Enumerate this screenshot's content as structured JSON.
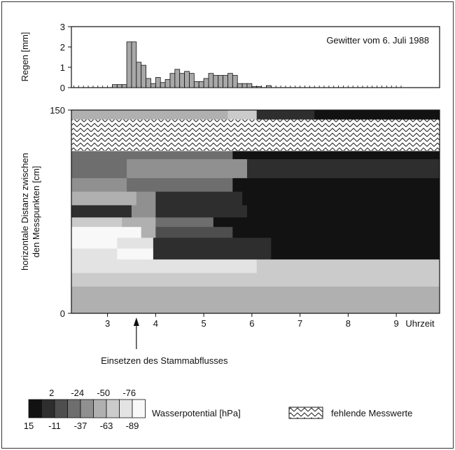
{
  "chart_data": [
    {
      "type": "bar",
      "title": "Gewitter vom 6. Juli 1988",
      "ylabel": "Regen [mm]",
      "ylim": [
        0,
        3
      ],
      "yticks": [
        "0",
        "1",
        "2",
        "3"
      ],
      "x_start": 2.2,
      "bar_width": 0.1,
      "values": [
        0,
        0,
        0,
        0,
        0,
        0,
        0,
        0,
        0,
        0.15,
        0.15,
        0.15,
        2.25,
        2.25,
        1.25,
        1.1,
        0.45,
        0.2,
        0.5,
        0.25,
        0.4,
        0.7,
        0.9,
        0.7,
        0.8,
        0.7,
        0.3,
        0.3,
        0.45,
        0.7,
        0.6,
        0.6,
        0.6,
        0.7,
        0.6,
        0.2,
        0.2,
        0.2,
        0.05,
        0.05,
        0,
        0.1,
        0,
        0,
        0,
        0,
        0,
        0,
        0,
        0,
        0,
        0,
        0,
        0,
        0,
        0,
        0,
        0,
        0,
        0,
        0,
        0,
        0,
        0,
        0,
        0,
        0,
        0,
        0,
        0
      ]
    },
    {
      "type": "heatmap",
      "ylabel": "horizontale Distanz zwischen den Messpunkten [cm]",
      "xlabel": "Uhrzeit",
      "xlim": [
        2.25,
        9.9
      ],
      "ylim": [
        0,
        150
      ],
      "xticks": [
        "3",
        "4",
        "5",
        "6",
        "7",
        "8",
        "9"
      ],
      "yticks": [
        "0",
        "150"
      ],
      "annotation": "Einsetzen des Stammabflusses",
      "annotation_x": 3.6,
      "legend_label": "Wasserpotential [hPa]",
      "legend_top_values": [
        "2",
        "-24",
        "-50",
        "-76"
      ],
      "legend_bottom_values": [
        "15",
        "-11",
        "-37",
        "-63",
        "-89"
      ],
      "class_colors": [
        "#121212",
        "#2e2e2e",
        "#4e4e4e",
        "#6e6e6e",
        "#909090",
        "#b0b0b0",
        "#cbcbcb",
        "#e3e3e3",
        "#f8f8f8"
      ],
      "missing_label": "fehlende Messwerte",
      "missing_band_cm": [
        120,
        143
      ],
      "bands": [
        {
          "y": [
            0,
            20
          ],
          "classes": [
            [
              2.25,
              9.9,
              5
            ]
          ]
        },
        {
          "y": [
            20,
            30
          ],
          "classes": [
            [
              2.25,
              9.9,
              6
            ]
          ]
        },
        {
          "y": [
            30,
            40
          ],
          "classes": [
            [
              2.25,
              6.1,
              7
            ],
            [
              6.1,
              9.9,
              6
            ]
          ]
        },
        {
          "y": [
            40,
            48
          ],
          "classes": [
            [
              2.25,
              3.2,
              7
            ],
            [
              3.2,
              3.95,
              8
            ],
            [
              3.95,
              6.4,
              1
            ],
            [
              6.4,
              9.9,
              0
            ]
          ]
        },
        {
          "y": [
            48,
            56
          ],
          "classes": [
            [
              2.25,
              3.2,
              8
            ],
            [
              3.2,
              3.95,
              7
            ],
            [
              3.95,
              6.4,
              1
            ],
            [
              6.4,
              9.9,
              0
            ]
          ]
        },
        {
          "y": [
            56,
            64
          ],
          "classes": [
            [
              2.25,
              3.7,
              8
            ],
            [
              3.7,
              4.0,
              5
            ],
            [
              4.0,
              5.6,
              2
            ],
            [
              5.6,
              9.9,
              0
            ]
          ]
        },
        {
          "y": [
            64,
            71
          ],
          "classes": [
            [
              2.25,
              3.3,
              6
            ],
            [
              3.3,
              4.0,
              5
            ],
            [
              4.0,
              5.2,
              3
            ],
            [
              5.2,
              9.9,
              0
            ]
          ]
        },
        {
          "y": [
            71,
            80
          ],
          "classes": [
            [
              2.25,
              3.5,
              1
            ],
            [
              3.5,
              4.0,
              4
            ],
            [
              4.0,
              5.9,
              1
            ],
            [
              5.9,
              9.9,
              0
            ]
          ]
        },
        {
          "y": [
            80,
            90
          ],
          "classes": [
            [
              2.25,
              3.6,
              5
            ],
            [
              3.6,
              4.0,
              4
            ],
            [
              4.0,
              5.8,
              1
            ],
            [
              5.8,
              9.9,
              0
            ]
          ]
        },
        {
          "y": [
            90,
            100
          ],
          "classes": [
            [
              2.25,
              3.4,
              4
            ],
            [
              3.4,
              5.6,
              3
            ],
            [
              5.6,
              9.9,
              0
            ]
          ]
        },
        {
          "y": [
            100,
            114
          ],
          "classes": [
            [
              2.25,
              3.4,
              3
            ],
            [
              3.4,
              5.9,
              4
            ],
            [
              5.9,
              9.9,
              1
            ]
          ]
        },
        {
          "y": [
            114,
            120
          ],
          "classes": [
            [
              2.25,
              5.6,
              3
            ],
            [
              5.6,
              9.9,
              0
            ]
          ]
        },
        {
          "y": [
            120,
            143
          ],
          "classes": [
            [
              2.25,
              9.9,
              8
            ]
          ]
        },
        {
          "y": [
            143,
            150
          ],
          "classes": [
            [
              2.25,
              5.5,
              5
            ],
            [
              5.5,
              6.1,
              6
            ],
            [
              6.1,
              7.3,
              1
            ],
            [
              7.3,
              9.9,
              0
            ]
          ]
        }
      ]
    }
  ]
}
